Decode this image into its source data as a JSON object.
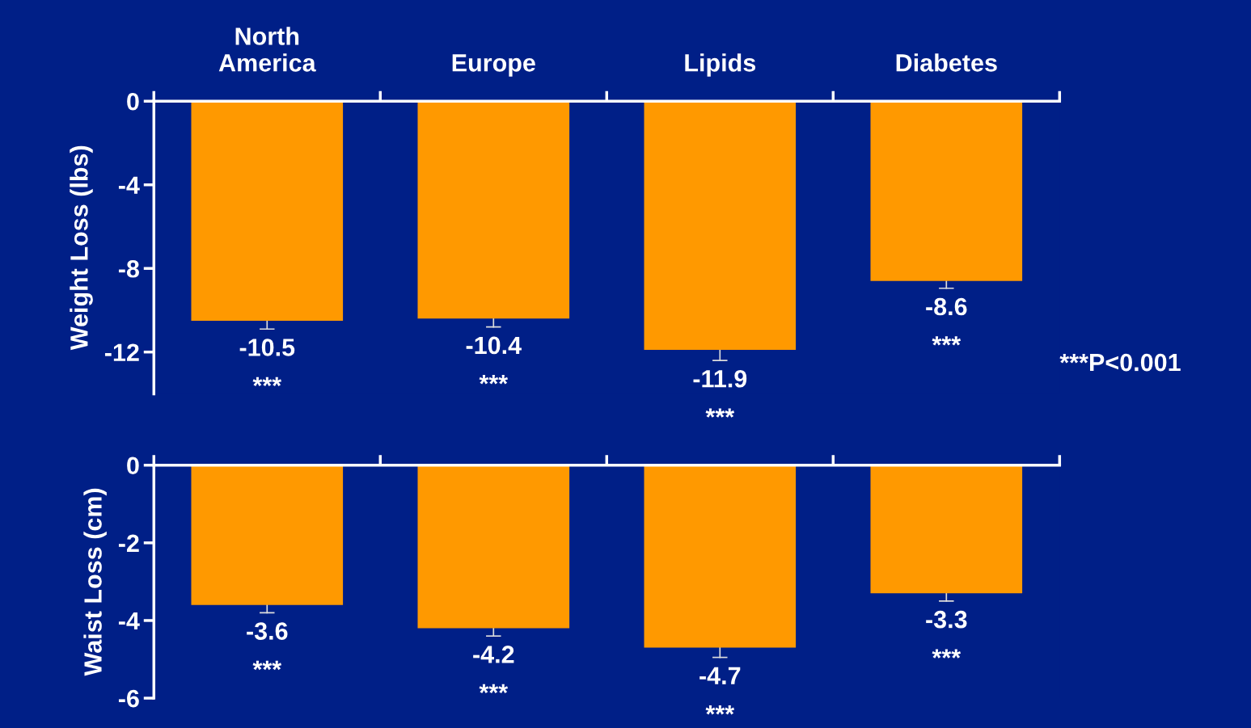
{
  "chart_data": [
    {
      "type": "bar",
      "categories": [
        "North\nAmerica",
        "Europe",
        "Lipids",
        "Diabetes"
      ],
      "ylabel": "Weight Loss (lbs)",
      "values": [
        -10.5,
        -10.4,
        -11.9,
        -8.6
      ],
      "color": "#ff9900",
      "errors": [
        [
          -10.9,
          -10.5
        ],
        [
          -10.8,
          -10.4
        ],
        [
          -12.4,
          -11.9
        ],
        [
          -8.95,
          -8.6
        ]
      ],
      "ylim": [
        -14,
        0
      ],
      "yticks": [
        0,
        -4,
        -8,
        -12
      ],
      "grid": false,
      "data_labels": true,
      "annotations": [
        "***",
        "***",
        "***",
        "***",
        "***P<0.001"
      ]
    },
    {
      "type": "bar",
      "categories": [
        null,
        null,
        null,
        null
      ],
      "ylabel": "Waist Loss (cm)",
      "tick_labels": "y",
      "values": [
        -3.6,
        -4.2,
        -4.7,
        -3.3
      ],
      "color": "#ff9900",
      "errors": [
        [
          -3.8,
          -3.6
        ],
        [
          -4.4,
          -4.2
        ],
        [
          -4.95,
          -4.7
        ],
        [
          -3.5,
          -3.3
        ]
      ],
      "ylim": [
        -6,
        0
      ],
      "yticks": [
        0,
        -2,
        -4,
        -6
      ],
      "grid": false,
      "data_labels": true,
      "annotations": [
        "***",
        "***",
        "***",
        "***"
      ]
    }
  ]
}
